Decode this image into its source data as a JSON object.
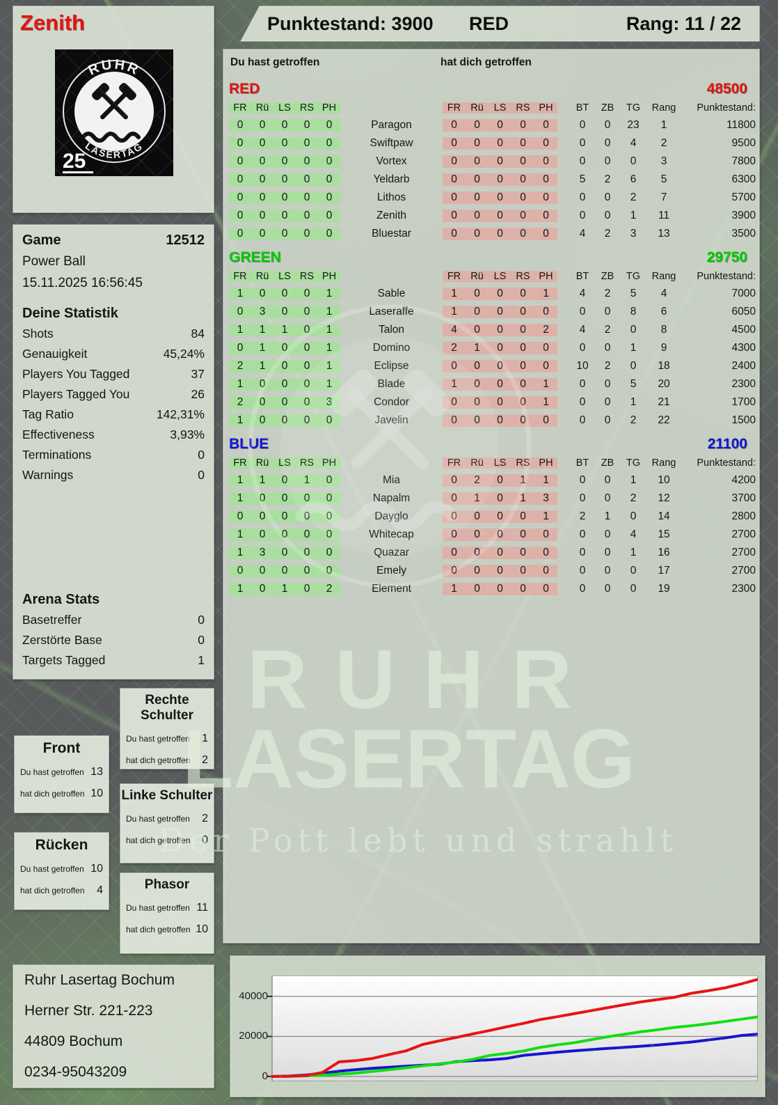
{
  "header": {
    "player_name": "Zenith",
    "punktestand": "Punktestand: 3900",
    "team": "RED",
    "rang": "Rang: 11 / 22"
  },
  "logo": {
    "top": "RUHR",
    "bottom": "LASERTAG",
    "badge": "25"
  },
  "sidebar": {
    "game_label": "Game",
    "game_number": "12512",
    "game_mode": "Power Ball",
    "game_datetime": "15.11.2025 16:56:45",
    "stats_title": "Deine Statistik",
    "stats": [
      {
        "label": "Shots",
        "value": "84"
      },
      {
        "label": "Genauigkeit",
        "value": "45,24%"
      },
      {
        "label": "Players You Tagged",
        "value": "37"
      },
      {
        "label": "Players Tagged You",
        "value": "26"
      },
      {
        "label": "Tag Ratio",
        "value": "142,31%"
      },
      {
        "label": "Effectiveness",
        "value": "3,93%"
      },
      {
        "label": "Terminations",
        "value": "0"
      },
      {
        "label": "Warnings",
        "value": "0"
      }
    ],
    "arena_title": "Arena Stats",
    "arena_stats": [
      {
        "label": "Basetreffer",
        "value": "0"
      },
      {
        "label": "Zerstörte Base",
        "value": "0"
      },
      {
        "label": "Targets Tagged",
        "value": "1"
      }
    ],
    "hit_label_you": "Du hast getroffen",
    "hit_label_them": "hat dich getroffen",
    "hit_boxes": [
      {
        "title": "Rechte Schulter",
        "you": "1",
        "them": "2"
      },
      {
        "title": "Front",
        "you": "13",
        "them": "10"
      },
      {
        "title": "Linke Schulter",
        "you": "2",
        "them": "0"
      },
      {
        "title": "Rücken",
        "you": "10",
        "them": "4"
      },
      {
        "title": "Phasor",
        "you": "11",
        "them": "10"
      }
    ]
  },
  "main": {
    "col_you": "Du hast getroffen",
    "col_them": "hat dich getroffen",
    "hit_cols": [
      "FR",
      "Rü",
      "LS",
      "RS",
      "PH"
    ],
    "stat_cols": [
      "BT",
      "ZB",
      "TG",
      "Rang",
      "Punktestand:"
    ],
    "teams": [
      {
        "name": "RED",
        "color": "#e31010",
        "total": "48500",
        "players": [
          {
            "name": "Paragon",
            "you": [
              "0",
              "0",
              "0",
              "0",
              "0"
            ],
            "them": [
              "0",
              "0",
              "0",
              "0",
              "0"
            ],
            "stats": [
              "0",
              "0",
              "23",
              "1",
              "11800"
            ]
          },
          {
            "name": "Swiftpaw",
            "you": [
              "0",
              "0",
              "0",
              "0",
              "0"
            ],
            "them": [
              "0",
              "0",
              "0",
              "0",
              "0"
            ],
            "stats": [
              "0",
              "0",
              "4",
              "2",
              "9500"
            ]
          },
          {
            "name": "Vortex",
            "you": [
              "0",
              "0",
              "0",
              "0",
              "0"
            ],
            "them": [
              "0",
              "0",
              "0",
              "0",
              "0"
            ],
            "stats": [
              "0",
              "0",
              "0",
              "3",
              "7800"
            ]
          },
          {
            "name": "Yeldarb",
            "you": [
              "0",
              "0",
              "0",
              "0",
              "0"
            ],
            "them": [
              "0",
              "0",
              "0",
              "0",
              "0"
            ],
            "stats": [
              "5",
              "2",
              "6",
              "5",
              "6300"
            ]
          },
          {
            "name": "Lithos",
            "you": [
              "0",
              "0",
              "0",
              "0",
              "0"
            ],
            "them": [
              "0",
              "0",
              "0",
              "0",
              "0"
            ],
            "stats": [
              "0",
              "0",
              "2",
              "7",
              "5700"
            ]
          },
          {
            "name": "Zenith",
            "you": [
              "0",
              "0",
              "0",
              "0",
              "0"
            ],
            "them": [
              "0",
              "0",
              "0",
              "0",
              "0"
            ],
            "stats": [
              "0",
              "0",
              "1",
              "11",
              "3900"
            ]
          },
          {
            "name": "Bluestar",
            "you": [
              "0",
              "0",
              "0",
              "0",
              "0"
            ],
            "them": [
              "0",
              "0",
              "0",
              "0",
              "0"
            ],
            "stats": [
              "4",
              "2",
              "3",
              "13",
              "3500"
            ]
          }
        ]
      },
      {
        "name": "GREEN",
        "color": "#0c0",
        "total": "29750",
        "players": [
          {
            "name": "Sable",
            "you": [
              "1",
              "0",
              "0",
              "0",
              "1"
            ],
            "them": [
              "1",
              "0",
              "0",
              "0",
              "1"
            ],
            "stats": [
              "4",
              "2",
              "5",
              "4",
              "7000"
            ]
          },
          {
            "name": "Laseraffe",
            "you": [
              "0",
              "3",
              "0",
              "0",
              "1"
            ],
            "them": [
              "1",
              "0",
              "0",
              "0",
              "0"
            ],
            "stats": [
              "0",
              "0",
              "8",
              "6",
              "6050"
            ]
          },
          {
            "name": "Talon",
            "you": [
              "1",
              "1",
              "1",
              "0",
              "1"
            ],
            "them": [
              "4",
              "0",
              "0",
              "0",
              "2"
            ],
            "stats": [
              "4",
              "2",
              "0",
              "8",
              "4500"
            ]
          },
          {
            "name": "Domino",
            "you": [
              "0",
              "1",
              "0",
              "0",
              "1"
            ],
            "them": [
              "2",
              "1",
              "0",
              "0",
              "0"
            ],
            "stats": [
              "0",
              "0",
              "1",
              "9",
              "4300"
            ]
          },
          {
            "name": "Eclipse",
            "you": [
              "2",
              "1",
              "0",
              "0",
              "1"
            ],
            "them": [
              "0",
              "0",
              "0",
              "0",
              "0"
            ],
            "stats": [
              "10",
              "2",
              "0",
              "18",
              "2400"
            ]
          },
          {
            "name": "Blade",
            "you": [
              "1",
              "0",
              "0",
              "0",
              "1"
            ],
            "them": [
              "1",
              "0",
              "0",
              "0",
              "1"
            ],
            "stats": [
              "0",
              "0",
              "5",
              "20",
              "2300"
            ]
          },
          {
            "name": "Condor",
            "you": [
              "2",
              "0",
              "0",
              "0",
              "3"
            ],
            "them": [
              "0",
              "0",
              "0",
              "0",
              "1"
            ],
            "stats": [
              "0",
              "0",
              "1",
              "21",
              "1700"
            ]
          },
          {
            "name": "Javelin",
            "you": [
              "1",
              "0",
              "0",
              "0",
              "0"
            ],
            "them": [
              "0",
              "0",
              "0",
              "0",
              "0"
            ],
            "stats": [
              "0",
              "0",
              "2",
              "22",
              "1500"
            ]
          }
        ]
      },
      {
        "name": "BLUE",
        "color": "#1414d2",
        "total": "21100",
        "players": [
          {
            "name": "Mia",
            "you": [
              "1",
              "1",
              "0",
              "1",
              "0"
            ],
            "them": [
              "0",
              "2",
              "0",
              "1",
              "1"
            ],
            "stats": [
              "0",
              "0",
              "1",
              "10",
              "4200"
            ]
          },
          {
            "name": "Napalm",
            "you": [
              "1",
              "0",
              "0",
              "0",
              "0"
            ],
            "them": [
              "0",
              "1",
              "0",
              "1",
              "3"
            ],
            "stats": [
              "0",
              "0",
              "2",
              "12",
              "3700"
            ]
          },
          {
            "name": "Dayglo",
            "you": [
              "0",
              "0",
              "0",
              "0",
              "0"
            ],
            "them": [
              "0",
              "0",
              "0",
              "0",
              "1"
            ],
            "stats": [
              "2",
              "1",
              "0",
              "14",
              "2800"
            ]
          },
          {
            "name": "Whitecap",
            "you": [
              "1",
              "0",
              "0",
              "0",
              "0"
            ],
            "them": [
              "0",
              "0",
              "0",
              "0",
              "0"
            ],
            "stats": [
              "0",
              "0",
              "4",
              "15",
              "2700"
            ]
          },
          {
            "name": "Quazar",
            "you": [
              "1",
              "3",
              "0",
              "0",
              "0"
            ],
            "them": [
              "0",
              "0",
              "0",
              "0",
              "0"
            ],
            "stats": [
              "0",
              "0",
              "1",
              "16",
              "2700"
            ]
          },
          {
            "name": "Emely",
            "you": [
              "0",
              "0",
              "0",
              "0",
              "0"
            ],
            "them": [
              "0",
              "0",
              "0",
              "0",
              "0"
            ],
            "stats": [
              "0",
              "0",
              "0",
              "17",
              "2700"
            ]
          },
          {
            "name": "Element",
            "you": [
              "1",
              "0",
              "1",
              "0",
              "2"
            ],
            "them": [
              "1",
              "0",
              "0",
              "0",
              "0"
            ],
            "stats": [
              "0",
              "0",
              "0",
              "19",
              "2300"
            ]
          }
        ]
      }
    ]
  },
  "watermark": {
    "line1": "RUHR",
    "line2": "LASERTAG",
    "tagline": "Der Pott lebt und strahlt"
  },
  "footer": {
    "lines": [
      "Ruhr Lasertag Bochum",
      "Herner Str. 221-223",
      "44809 Bochum",
      "0234-95043209"
    ]
  },
  "chart_data": {
    "type": "line",
    "title": "",
    "xlabel": "",
    "ylabel": "",
    "ylim": [
      0,
      50500
    ],
    "grid": true,
    "gridlines": [
      0,
      20000,
      40000
    ],
    "yticks": [
      "40000",
      "20000",
      "0"
    ],
    "legend_position": "none",
    "series": [
      {
        "name": "BLUE",
        "color": "#1515cc",
        "values": [
          0,
          200,
          700,
          1600,
          2600,
          3400,
          4100,
          4600,
          5100,
          5600,
          6100,
          7400,
          7900,
          8300,
          9000,
          10500,
          11300,
          12100,
          12800,
          13400,
          14000,
          14500,
          15100,
          15700,
          16400,
          17200,
          18200,
          19200,
          20400,
          21100
        ]
      },
      {
        "name": "GREEN",
        "color": "#12dd12",
        "values": [
          0,
          100,
          300,
          600,
          1100,
          1700,
          2500,
          3400,
          4300,
          5300,
          6300,
          7200,
          8600,
          10500,
          11500,
          12700,
          14500,
          15800,
          16800,
          18300,
          19800,
          21000,
          22300,
          23300,
          24500,
          25300,
          26300,
          27400,
          28600,
          29750
        ]
      },
      {
        "name": "RED",
        "color": "#e81212",
        "values": [
          0,
          100,
          400,
          2000,
          7300,
          7900,
          9000,
          11000,
          12800,
          16000,
          17800,
          19500,
          21300,
          23000,
          24800,
          26500,
          28400,
          29800,
          31300,
          32800,
          34300,
          35800,
          37200,
          38400,
          39500,
          41500,
          42800,
          44200,
          46200,
          48500
        ]
      }
    ]
  }
}
